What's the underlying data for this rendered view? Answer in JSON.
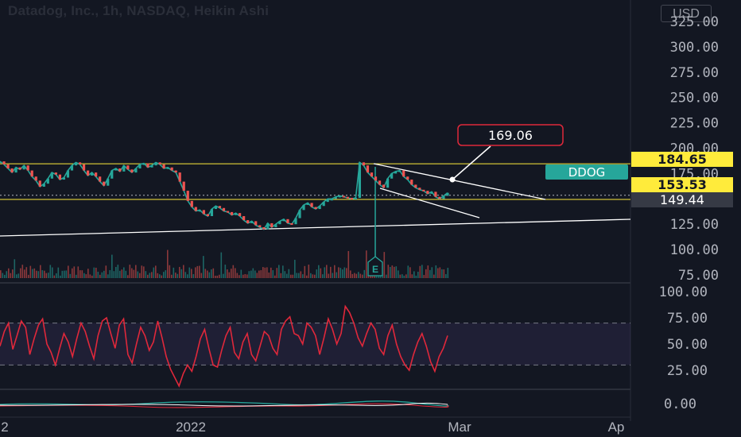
{
  "header": {
    "title": "Datadog, Inc., 1h, NASDAQ, Heikin Ashi",
    "currency": "USD"
  },
  "chart_data": {
    "type": "line",
    "title": "Datadog, Inc., 1h, NASDAQ, Heikin Ashi",
    "price_axis": {
      "ticks": [
        "325.00",
        "300.00",
        "275.00",
        "250.00",
        "225.00",
        "200.00",
        "175.00",
        "150.00",
        "125.00",
        "100.00",
        "75.00"
      ],
      "range": [
        75,
        325
      ]
    },
    "rsi_axis": {
      "ticks": [
        "100.00",
        "75.00",
        "50.00",
        "25.00"
      ],
      "range": [
        0,
        100
      ],
      "band": [
        30,
        70
      ]
    },
    "osc_axis": {
      "ticks": [
        "0.00"
      ]
    },
    "x_labels": [
      "2",
      "2022",
      "Mar",
      "Ap"
    ],
    "price_labels": {
      "upper": {
        "text": "184.65",
        "value": 184.65,
        "color": "#ffeb3b"
      },
      "symbol": {
        "text": "DDOG",
        "color": "#26a69a"
      },
      "last": {
        "text": "153.53",
        "value": 153.53,
        "color": "#ffeb3b"
      },
      "lower": {
        "text": "149.44",
        "value": 149.44,
        "color": "#363a45"
      }
    },
    "callout": {
      "text": "169.06",
      "value": 169.06
    },
    "earnings_marker": "E",
    "horizontal_levels": [
      184.65,
      149.44
    ],
    "price_series": {
      "name": "DDOG",
      "values": [
        187,
        184,
        180,
        176,
        181,
        179,
        183,
        178,
        172,
        168,
        162,
        165,
        170,
        176,
        174,
        169,
        171,
        178,
        183,
        186,
        184,
        178,
        173,
        176,
        172,
        167,
        163,
        170,
        178,
        180,
        177,
        183,
        179,
        176,
        180,
        184,
        185,
        181,
        183,
        186,
        184,
        180,
        181,
        178,
        176,
        167,
        158,
        148,
        142,
        138,
        139,
        135,
        133,
        140,
        143,
        141,
        138,
        137,
        134,
        136,
        133,
        129,
        126,
        128,
        124,
        122,
        120,
        126,
        122,
        125,
        128,
        130,
        126,
        125,
        131,
        139,
        144,
        146,
        142,
        140,
        143,
        147,
        150,
        150,
        152,
        153,
        152,
        151,
        150,
        151,
        186,
        183,
        176,
        172,
        168,
        164,
        161,
        170,
        175,
        177,
        178,
        172,
        169,
        164,
        161,
        159,
        158,
        155,
        157,
        152,
        150,
        153,
        156
      ]
    },
    "rsi_series": {
      "name": "RSI",
      "values": [
        48,
        62,
        70,
        45,
        58,
        72,
        66,
        40,
        55,
        68,
        74,
        50,
        42,
        30,
        46,
        60,
        52,
        38,
        55,
        70,
        62,
        48,
        36,
        58,
        72,
        75,
        60,
        46,
        68,
        74,
        40,
        32,
        50,
        66,
        58,
        44,
        52,
        72,
        56,
        38,
        26,
        18,
        10,
        22,
        30,
        24,
        38,
        55,
        64,
        46,
        30,
        28,
        44,
        58,
        66,
        42,
        36,
        52,
        60,
        40,
        34,
        48,
        62,
        58,
        46,
        40,
        64,
        72,
        76,
        60,
        58,
        50,
        70,
        66,
        58,
        40,
        56,
        74,
        64,
        50,
        60,
        86,
        80,
        70,
        56,
        48,
        60,
        70,
        64,
        46,
        40,
        58,
        68,
        50,
        38,
        30,
        25,
        40,
        52,
        60,
        48,
        33,
        24,
        38,
        46,
        58
      ]
    },
    "grid": true,
    "legend": "none"
  }
}
